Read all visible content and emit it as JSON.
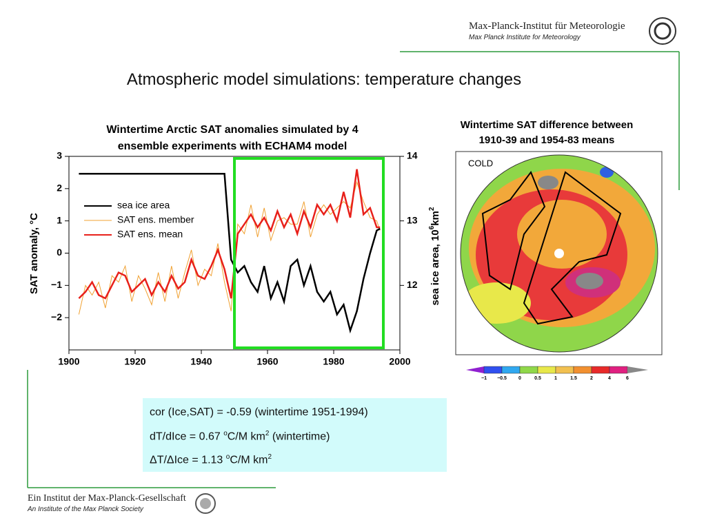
{
  "header": {
    "institute": "Max-Planck-Institut für Meteorologie",
    "institute_en": "Max Planck Institute for Meteorology"
  },
  "title": "Atmospheric model simulations: temperature changes",
  "chart_data": {
    "type": "line",
    "title": [
      "Wintertime Arctic SAT anomalies simulated by 4",
      "ensemble experiments with ECHAM4 model"
    ],
    "ylabel": "SAT anomaly, °C",
    "y2label": [
      "sea ice area, 10",
      "6",
      "km",
      "2"
    ],
    "x": [
      1903,
      1905,
      1907,
      1909,
      1911,
      1913,
      1915,
      1917,
      1919,
      1921,
      1923,
      1925,
      1927,
      1929,
      1931,
      1933,
      1935,
      1937,
      1939,
      1941,
      1943,
      1945,
      1947,
      1949,
      1951,
      1953,
      1955,
      1957,
      1959,
      1961,
      1963,
      1965,
      1967,
      1969,
      1971,
      1973,
      1975,
      1977,
      1979,
      1981,
      1983,
      1985,
      1987,
      1989,
      1991,
      1993,
      1994
    ],
    "series": [
      {
        "name": "SAT ens. member",
        "color": "#f0a030",
        "values": [
          -1.9,
          -1.0,
          -1.3,
          -0.9,
          -1.7,
          -0.7,
          -0.9,
          -0.4,
          -1.5,
          -0.7,
          -1.1,
          -1.6,
          -0.6,
          -1.5,
          -0.4,
          -1.4,
          -0.6,
          0.1,
          -1.0,
          -0.5,
          -0.7,
          0.3,
          -0.9,
          -1.8,
          0.9,
          0.6,
          1.5,
          0.5,
          1.4,
          0.4,
          1.0,
          1.1,
          0.9,
          0.9,
          1.6,
          0.5,
          1.2,
          1.5,
          1.2,
          1.4,
          1.6,
          1.4,
          2.2,
          1.6,
          1.1,
          1.0,
          0.7
        ]
      },
      {
        "name": "SAT ens. mean",
        "color": "#e8201a",
        "values": [
          -1.4,
          -1.2,
          -0.9,
          -1.3,
          -1.4,
          -1.0,
          -0.6,
          -0.7,
          -1.2,
          -1.0,
          -0.8,
          -1.3,
          -0.9,
          -1.2,
          -0.7,
          -1.1,
          -0.9,
          -0.2,
          -0.7,
          -0.8,
          -0.4,
          0.1,
          -0.5,
          -1.4,
          0.6,
          0.9,
          1.2,
          0.8,
          1.1,
          0.7,
          1.3,
          0.8,
          1.2,
          0.6,
          1.3,
          0.8,
          1.5,
          1.2,
          1.5,
          1.0,
          1.9,
          1.1,
          2.6,
          1.2,
          1.4,
          0.8,
          0.8
        ]
      },
      {
        "name": "sea ice area",
        "color": "#000000",
        "axis": "y2",
        "values": [
          13.73,
          13.73,
          13.73,
          13.73,
          13.73,
          13.73,
          13.73,
          13.73,
          13.73,
          13.73,
          13.73,
          13.73,
          13.73,
          13.73,
          13.73,
          13.73,
          13.73,
          13.73,
          13.73,
          13.73,
          13.73,
          13.73,
          13.73,
          12.4,
          12.2,
          12.3,
          12.05,
          11.9,
          12.3,
          11.8,
          12.05,
          11.75,
          12.3,
          12.4,
          12.0,
          12.3,
          11.9,
          11.75,
          11.9,
          11.55,
          11.7,
          11.3,
          11.6,
          12.1,
          12.5,
          12.85,
          12.88
        ]
      }
    ],
    "xlim": [
      1900,
      2000
    ],
    "xticks": [
      1900,
      1920,
      1940,
      1960,
      1980,
      2000
    ],
    "ylim": [
      -3,
      3
    ],
    "yticks": [
      {
        "value": -2,
        "label": "−2"
      },
      {
        "value": -1,
        "label": "−1"
      },
      0,
      1,
      2,
      3
    ],
    "y2lim": [
      11,
      14
    ],
    "y2ticks": [
      12,
      13,
      14
    ],
    "highlight_x": [
      1950,
      1995
    ],
    "highlight_color": "#22dd22",
    "legend": "center left"
  },
  "map": {
    "title": [
      "Wintertime SAT difference between",
      "1910-39 and 1954-83 means"
    ],
    "corner_label": "COLD",
    "colorbar_labels": [
      "−1",
      "−0.5",
      "0",
      "0.5",
      "1",
      "1.5",
      "2",
      "4",
      "6"
    ]
  },
  "notes": {
    "line1": "cor (Ice,SAT) = -0.59 (wintertime 1951-1994)",
    "line2": [
      "dT/dIce = 0.67 ",
      "o",
      "C/M km",
      "2",
      " (wintertime)"
    ],
    "line3": [
      "ΔT/ΔIce = 1.13 ",
      "o",
      "C/M km",
      "2"
    ]
  },
  "footer": {
    "society": "Ein Institut der Max-Planck-Gesellschaft",
    "society_en": "An Institute of the Max Planck Society"
  }
}
